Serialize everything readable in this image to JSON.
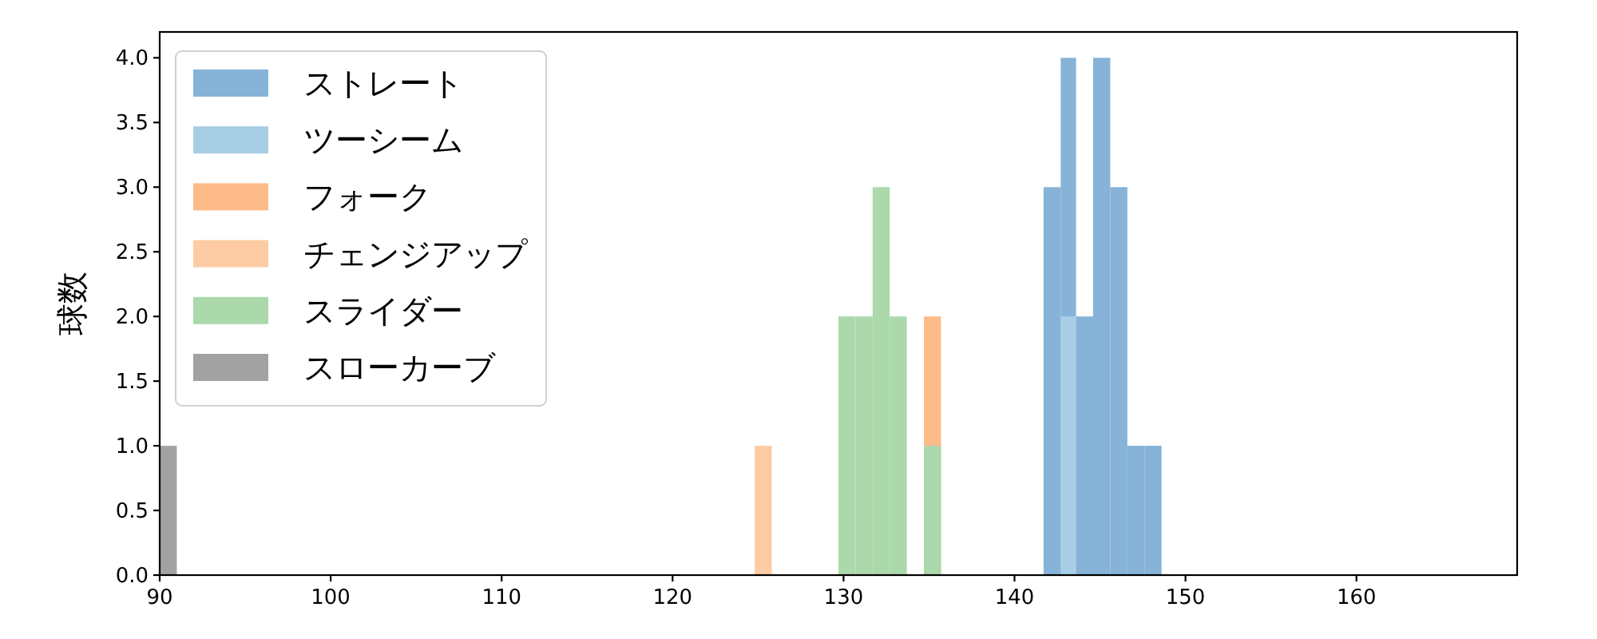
{
  "chart_data": {
    "type": "histogram",
    "ylabel": "球数",
    "xlim": [
      90,
      169.4
    ],
    "ylim": [
      0,
      4.2
    ],
    "xticks": [
      90,
      100,
      110,
      120,
      130,
      140,
      150,
      160
    ],
    "yticks": [
      {
        "value": 0,
        "label": "0.0"
      },
      {
        "value": 0.5,
        "label": "0.5"
      },
      {
        "value": 1,
        "label": "1.0"
      },
      {
        "value": 1.5,
        "label": "1.5"
      },
      {
        "value": 2,
        "label": "2.0"
      },
      {
        "value": 2.5,
        "label": "2.5"
      },
      {
        "value": 3,
        "label": "3.0"
      },
      {
        "value": 3.5,
        "label": "3.5"
      },
      {
        "value": 4,
        "label": "4.0"
      }
    ],
    "legend": "top left",
    "bins": [
      90,
      91,
      124.8,
      125.8,
      129.7,
      130.7,
      131.7,
      132.7,
      133.7,
      134.7,
      135.7,
      141.7,
      142.7,
      143.6,
      144.6,
      145.6,
      146.6,
      147.6,
      148.6
    ],
    "series": [
      {
        "name": "ストレート",
        "color": "#86b3d7",
        "values": [
          0,
          0,
          0,
          0,
          0,
          0,
          0,
          0,
          0,
          0,
          0,
          3,
          4,
          2,
          4,
          3,
          1,
          1
        ]
      },
      {
        "name": "ツーシーム",
        "color": "#a8cee6",
        "values": [
          0,
          0,
          0,
          0,
          0,
          0,
          0,
          0,
          0,
          0,
          0,
          0,
          2,
          0,
          0,
          0,
          0,
          0
        ]
      },
      {
        "name": "フォーク",
        "color": "#fdbb8a",
        "values": [
          0,
          0,
          0,
          0,
          0,
          0,
          0,
          0,
          0,
          2,
          0,
          0,
          0,
          0,
          0,
          0,
          0,
          0
        ]
      },
      {
        "name": "チェンジアップ",
        "color": "#fdcca5",
        "values": [
          0,
          0,
          1,
          0,
          0,
          0,
          0,
          0,
          0,
          0,
          0,
          0,
          0,
          0,
          0,
          0,
          0,
          0
        ]
      },
      {
        "name": "スライダー",
        "color": "#abd9ab",
        "values": [
          0,
          0,
          0,
          0,
          2,
          2,
          3,
          2,
          0,
          1,
          0,
          0,
          0,
          0,
          0,
          0,
          0,
          0
        ]
      },
      {
        "name": "スローカーブ",
        "color": "#a2a2a2",
        "values": [
          1,
          0,
          0,
          0,
          0,
          0,
          0,
          0,
          0,
          0,
          0,
          0,
          0,
          0,
          0,
          0,
          0,
          0
        ]
      }
    ]
  }
}
